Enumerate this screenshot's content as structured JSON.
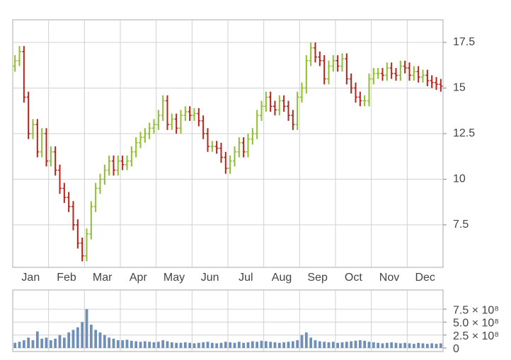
{
  "chart_data": {
    "type": "ohlc",
    "categories": [
      "Jan",
      "Feb",
      "Mar",
      "Apr",
      "May",
      "Jun",
      "Jul",
      "Aug",
      "Sep",
      "Oct",
      "Nov",
      "Dec"
    ],
    "open": [
      16.2,
      16.5,
      17,
      14.5,
      12.5,
      13,
      11.5,
      12.5,
      11,
      11.5,
      10.5,
      9.5,
      9,
      8.5,
      7.5,
      6.5,
      5.8,
      7,
      8.5,
      9.5,
      10,
      10.5,
      11,
      10.5,
      11,
      10.8,
      11,
      11.5,
      12,
      12.3,
      12.5,
      12.8,
      13,
      13.5,
      14.3,
      13,
      13.3,
      12.8,
      13.5,
      13.7,
      13.5,
      13.6,
      13.2,
      12.5,
      11.8,
      11.8,
      11.7,
      11.2,
      10.6,
      11,
      11.5,
      12,
      11.5,
      12.2,
      12.5,
      13.5,
      14,
      14.5,
      14,
      13.8,
      14.3,
      14,
      13.5,
      13,
      14.5,
      15,
      16.5,
      17.2,
      16.7,
      16.5,
      15.5,
      16.2,
      16.5,
      16.2,
      16.6,
      15.5,
      15,
      14.5,
      14.3,
      14.3,
      15.5,
      15.8,
      15.8,
      15.7,
      16.1,
      15.8,
      15.7,
      16.2,
      16.1,
      15.7,
      15.9,
      15.6,
      15.7,
      15.4,
      15.3,
      15.2
    ],
    "high": [
      16.8,
      17.3,
      17.3,
      14.8,
      13.3,
      13.3,
      12.8,
      12.8,
      11.8,
      11.8,
      10.8,
      9.8,
      9.3,
      8.8,
      7.8,
      6.8,
      7.3,
      8.8,
      9.8,
      10.3,
      10.8,
      11.3,
      11.3,
      11.3,
      11.3,
      11.3,
      11.8,
      12.3,
      12.6,
      12.8,
      13.1,
      13.3,
      13.8,
      14.6,
      14.6,
      13.6,
      13.6,
      13.8,
      14,
      14,
      13.9,
      13.9,
      13.5,
      12.8,
      12.1,
      12.1,
      12,
      11.5,
      11.3,
      11.8,
      12.3,
      12.3,
      12.5,
      12.8,
      13.8,
      14.3,
      14.8,
      14.8,
      14.3,
      14.6,
      14.6,
      14.3,
      13.8,
      14.8,
      15.3,
      16.8,
      17.5,
      17.5,
      17,
      16.8,
      16.5,
      16.8,
      16.8,
      16.9,
      16.9,
      15.8,
      15.3,
      14.8,
      14.6,
      15.8,
      16.1,
      16.1,
      16.1,
      16.4,
      16.4,
      16.1,
      16.5,
      16.5,
      16.4,
      16.2,
      16.2,
      16,
      16,
      15.7,
      15.6,
      15.5
    ],
    "low": [
      15.9,
      16.2,
      14.2,
      12.2,
      12.2,
      11.2,
      11.2,
      10.7,
      10.7,
      10.2,
      9.2,
      8.7,
      8.2,
      7.2,
      6.2,
      5.5,
      5.5,
      6.7,
      8.2,
      9.2,
      9.7,
      10.2,
      10.2,
      10.2,
      10.5,
      10.5,
      10.7,
      11.2,
      11.7,
      12,
      12.2,
      12.5,
      12.7,
      13.2,
      12.7,
      12.7,
      12.5,
      12.5,
      13.2,
      13.2,
      13.2,
      12.9,
      12.2,
      11.5,
      11.5,
      11.4,
      10.9,
      10.3,
      10.3,
      10.7,
      11.2,
      11.2,
      11.2,
      11.9,
      12.2,
      13.2,
      13.7,
      13.7,
      13.5,
      13.5,
      13.7,
      13.2,
      12.7,
      12.7,
      14.2,
      14.7,
      16.2,
      16.4,
      16.2,
      15.2,
      15.2,
      15.9,
      15.9,
      15.9,
      15.2,
      14.7,
      14.2,
      14,
      14,
      14,
      15.2,
      15.5,
      15.4,
      15.4,
      15.5,
      15.4,
      15.4,
      15.8,
      15.4,
      15.4,
      15.3,
      15.3,
      15.1,
      15,
      14.9,
      14.8
    ],
    "close": [
      16.5,
      17,
      14.5,
      12.5,
      13,
      11.5,
      12.5,
      11,
      11.5,
      10.5,
      9.5,
      9,
      8.5,
      7.5,
      6.5,
      5.8,
      7,
      8.5,
      9.5,
      10,
      10.5,
      11,
      10.5,
      11,
      10.8,
      11,
      11.5,
      12,
      12.3,
      12.5,
      12.8,
      13,
      13.5,
      14.3,
      13,
      13.3,
      12.8,
      13.5,
      13.7,
      13.5,
      13.6,
      13.2,
      12.5,
      11.8,
      11.8,
      11.7,
      11.2,
      10.6,
      11,
      11.5,
      12,
      11.5,
      12.2,
      12.5,
      13.5,
      14,
      14.5,
      14,
      13.8,
      14.3,
      14,
      13.5,
      13,
      14.5,
      15,
      16.5,
      17.2,
      16.7,
      16.5,
      15.5,
      16.2,
      16.5,
      16.2,
      16.6,
      15.5,
      15,
      14.5,
      14.3,
      14.3,
      15.5,
      15.8,
      15.8,
      15.7,
      16.1,
      15.8,
      15.7,
      16.2,
      16.1,
      15.7,
      15.9,
      15.6,
      15.7,
      15.4,
      15.3,
      15.2,
      15.1
    ],
    "volume": [
      100000000.0,
      120000000.0,
      150000000.0,
      200000000.0,
      150000000.0,
      320000000.0,
      180000000.0,
      200000000.0,
      150000000.0,
      180000000.0,
      250000000.0,
      200000000.0,
      300000000.0,
      350000000.0,
      400000000.0,
      500000000.0,
      750000000.0,
      450000000.0,
      350000000.0,
      300000000.0,
      250000000.0,
      200000000.0,
      180000000.0,
      150000000.0,
      150000000.0,
      160000000.0,
      140000000.0,
      130000000.0,
      120000000.0,
      130000000.0,
      120000000.0,
      110000000.0,
      120000000.0,
      150000000.0,
      130000000.0,
      110000000.0,
      100000000.0,
      100000000.0,
      110000000.0,
      100000000.0,
      90000000.0,
      100000000.0,
      110000000.0,
      120000000.0,
      100000000.0,
      90000000.0,
      100000000.0,
      120000000.0,
      110000000.0,
      100000000.0,
      120000000.0,
      100000000.0,
      110000000.0,
      130000000.0,
      120000000.0,
      140000000.0,
      130000000.0,
      120000000.0,
      110000000.0,
      100000000.0,
      110000000.0,
      120000000.0,
      130000000.0,
      150000000.0,
      250000000.0,
      300000000.0,
      200000000.0,
      150000000.0,
      130000000.0,
      120000000.0,
      110000000.0,
      120000000.0,
      100000000.0,
      110000000.0,
      120000000.0,
      130000000.0,
      140000000.0,
      150000000.0,
      140000000.0,
      120000000.0,
      110000000.0,
      100000000.0,
      90000000.0,
      100000000.0,
      110000000.0,
      100000000.0,
      90000000.0,
      100000000.0,
      90000000.0,
      80000000.0,
      100000000.0,
      90000000.0,
      80000000.0,
      90000000.0,
      80000000.0,
      90000000.0
    ],
    "up_color": "#8fbf2e",
    "down_color": "#b5241b",
    "volume_color": "#6f8fb8",
    "ylim": [
      5.17,
      18.74
    ],
    "yticks": [
      7.5,
      10.0,
      12.5,
      15.0,
      17.5
    ],
    "y2lim": [
      -68000000,
      1120000000
    ],
    "y2ticks": [
      0,
      {
        "value": 250000000,
        "label": "2.5 × 10⁸"
      },
      {
        "value": 500000000,
        "label": "5.0 × 10⁸"
      },
      {
        "value": 750000000,
        "label": "7.5 × 10⁸"
      }
    ],
    "grid": true
  }
}
